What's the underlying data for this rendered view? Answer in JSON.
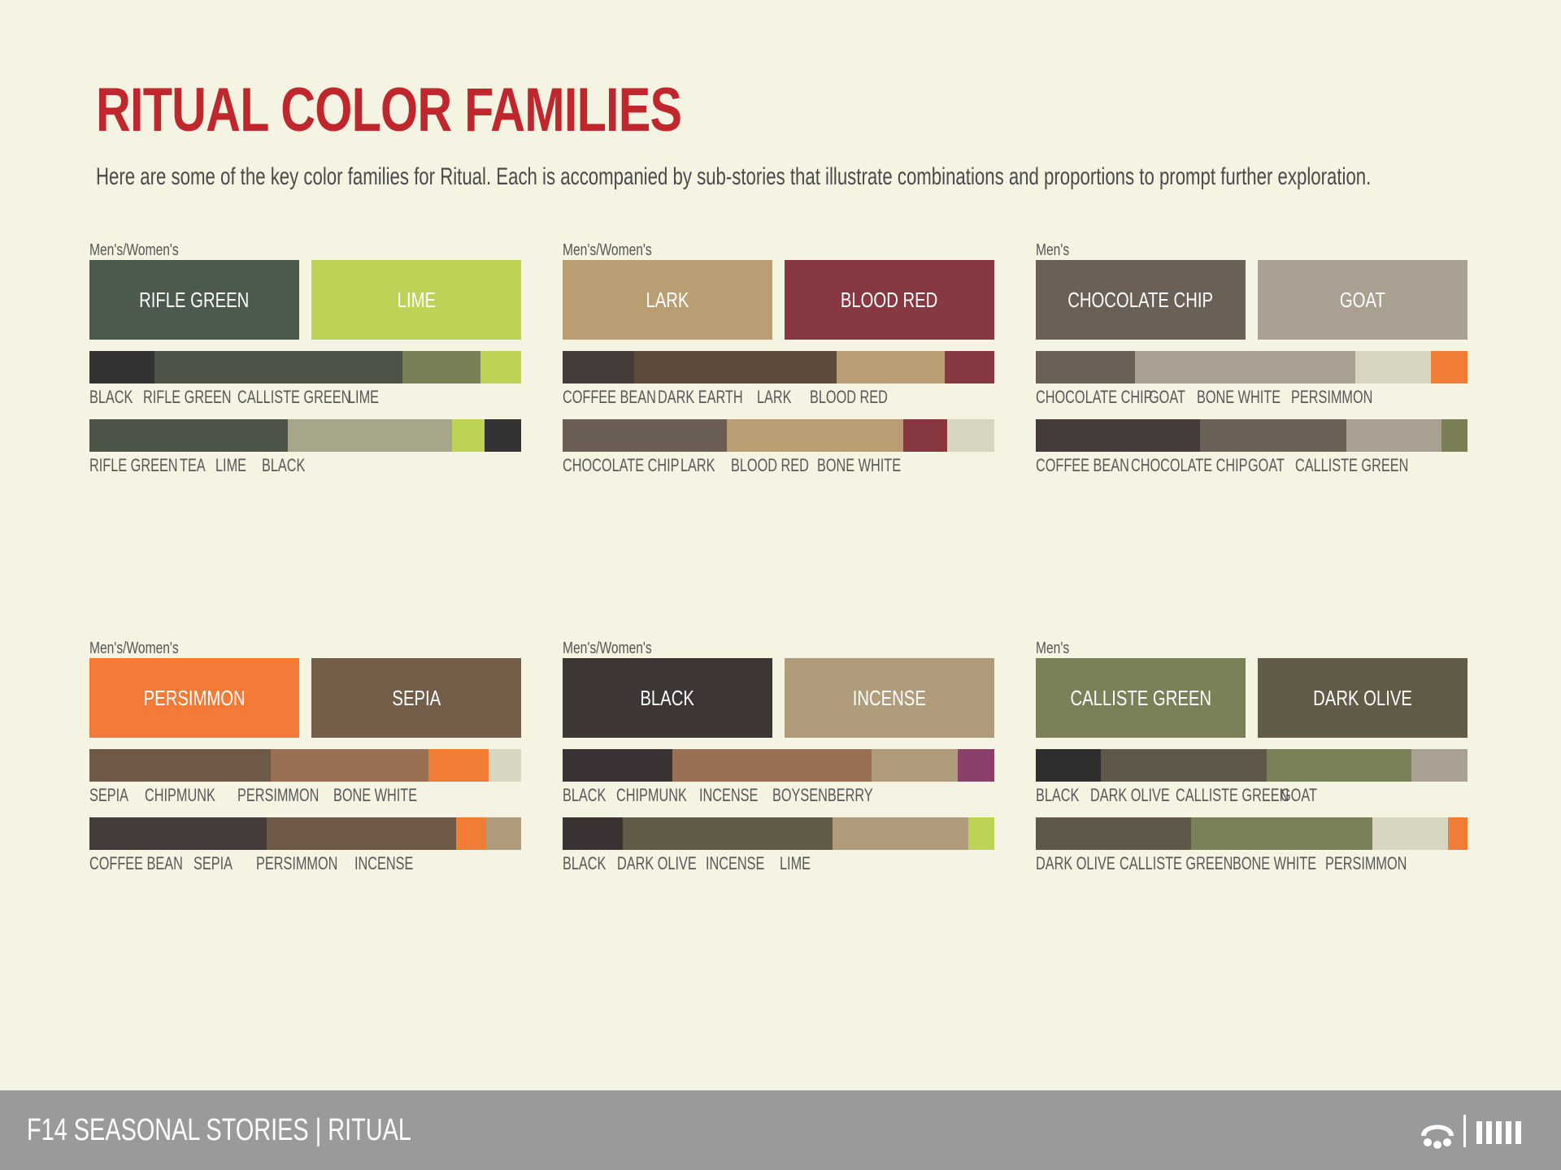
{
  "title": "RITUAL COLOR FAMILIES",
  "subtitle": "Here are some of the key color families for Ritual. Each is accompanied by sub-stories that illustrate combinations and proportions to prompt further exploration.",
  "footer": {
    "text": "F14 SEASONAL STORIES | RITUAL",
    "logo_icon": "paw-logo-icon",
    "bars_icon": "bars-icon"
  },
  "families": [
    {
      "segment": "Men's/Women's",
      "swatches": [
        {
          "name": "RIFLE GREEN",
          "color": "#4b5a4c"
        },
        {
          "name": "LIME",
          "color": "#bcd355"
        }
      ],
      "strips": [
        {
          "parts": [
            {
              "name": "BLACK",
              "color": "#353235",
              "fraction": 0.15
            },
            {
              "name": "RIFLE GREEN",
              "color": "#4b5446",
              "fraction": 0.575
            },
            {
              "name": "CALLISTE GREEN",
              "color": "#7a7f56",
              "fraction": 0.18
            },
            {
              "name": "LIME",
              "color": "#bcd355",
              "fraction": 0.095
            }
          ],
          "labels": [
            "BLACK",
            "RIFLE GREEN",
            "CALLISTE GREEN",
            "LIME"
          ]
        },
        {
          "parts": [
            {
              "name": "RIFLE GREEN",
              "color": "#4b5446",
              "fraction": 0.46
            },
            {
              "name": "TEA",
              "color": "#a7a68b",
              "fraction": 0.38
            },
            {
              "name": "LIME",
              "color": "#bcd355",
              "fraction": 0.075
            },
            {
              "name": "BLACK",
              "color": "#353235",
              "fraction": 0.085
            }
          ],
          "labels": [
            "RIFLE GREEN",
            "TEA",
            "LIME",
            "BLACK"
          ]
        }
      ]
    },
    {
      "segment": "Men's/Women's",
      "swatches": [
        {
          "name": "LARK",
          "color": "#b99e73"
        },
        {
          "name": "BLOOD RED",
          "color": "#873841"
        }
      ],
      "strips": [
        {
          "parts": [
            {
              "name": "COFFEE BEAN",
              "color": "#463b3b",
              "fraction": 0.165
            },
            {
              "name": "DARK EARTH",
              "color": "#5f4a3e",
              "fraction": 0.47
            },
            {
              "name": "LARK",
              "color": "#b99e73",
              "fraction": 0.25
            },
            {
              "name": "BLOOD RED",
              "color": "#873841",
              "fraction": 0.115
            }
          ],
          "labels": [
            "COFFEE BEAN",
            "DARK EARTH",
            "LARK",
            "BLOOD RED"
          ]
        },
        {
          "parts": [
            {
              "name": "CHOCOLATE CHIP",
              "color": "#6a5e55",
              "fraction": 0.38
            },
            {
              "name": "LARK",
              "color": "#b99e73",
              "fraction": 0.41
            },
            {
              "name": "BLOOD RED",
              "color": "#873841",
              "fraction": 0.1
            },
            {
              "name": "BONE WHITE",
              "color": "#d8d6c3",
              "fraction": 0.11
            }
          ],
          "labels": [
            "CHOCOLATE CHIP",
            "LARK",
            "BLOOD RED",
            "BONE WHITE"
          ]
        }
      ]
    },
    {
      "segment": "Men's",
      "swatches": [
        {
          "name": "CHOCOLATE CHIP",
          "color": "#6b6056"
        },
        {
          "name": "GOAT",
          "color": "#a9a091"
        }
      ],
      "strips": [
        {
          "parts": [
            {
              "name": "CHOCOLATE CHIP",
              "color": "#6b6056",
              "fraction": 0.23
            },
            {
              "name": "GOAT",
              "color": "#a9a091",
              "fraction": 0.51
            },
            {
              "name": "BONE WHITE",
              "color": "#d8d6c3",
              "fraction": 0.175
            },
            {
              "name": "PERSIMMON",
              "color": "#f07c35",
              "fraction": 0.085
            }
          ],
          "labels": [
            "CHOCOLATE CHIP",
            "GOAT",
            "BONE WHITE",
            "PERSIMMON"
          ]
        },
        {
          "parts": [
            {
              "name": "COFFEE BEAN",
              "color": "#463b3b",
              "fraction": 0.38
            },
            {
              "name": "CHOCOLATE CHIP",
              "color": "#6b6056",
              "fraction": 0.34
            },
            {
              "name": "GOAT",
              "color": "#a9a091",
              "fraction": 0.22
            },
            {
              "name": "CALLISTE GREEN",
              "color": "#7a7f56",
              "fraction": 0.06
            }
          ],
          "labels": [
            "COFFEE BEAN",
            "CHOCOLATE CHIP",
            "GOAT",
            "CALLISTE GREEN"
          ]
        }
      ]
    },
    {
      "segment": "Men's/Women's",
      "swatches": [
        {
          "name": "PERSIMMON",
          "color": "#f47b37"
        },
        {
          "name": "SEPIA",
          "color": "#735e49"
        }
      ],
      "strips": [
        {
          "parts": [
            {
              "name": "SEPIA",
              "color": "#6e5a46",
              "fraction": 0.42
            },
            {
              "name": "CHIPMUNK",
              "color": "#9a7052",
              "fraction": 0.365
            },
            {
              "name": "PERSIMMON",
              "color": "#f07c35",
              "fraction": 0.14
            },
            {
              "name": "BONE WHITE",
              "color": "#d8d6c3",
              "fraction": 0.075
            }
          ],
          "labels": [
            "SEPIA",
            "CHIPMUNK",
            "PERSIMMON",
            "BONE WHITE"
          ]
        },
        {
          "parts": [
            {
              "name": "COFFEE BEAN",
              "color": "#463b3b",
              "fraction": 0.41
            },
            {
              "name": "SEPIA",
              "color": "#6e5a46",
              "fraction": 0.44
            },
            {
              "name": "PERSIMMON",
              "color": "#f07c35",
              "fraction": 0.07
            },
            {
              "name": "INCENSE",
              "color": "#b09c7b",
              "fraction": 0.08
            }
          ],
          "labels": [
            "COFFEE BEAN",
            "SEPIA",
            "PERSIMMON",
            "INCENSE"
          ]
        }
      ]
    },
    {
      "segment": "Men's/Women's",
      "swatches": [
        {
          "name": "BLACK",
          "color": "#3e3535"
        },
        {
          "name": "INCENSE",
          "color": "#b09c7b"
        }
      ],
      "strips": [
        {
          "parts": [
            {
              "name": "BLACK",
              "color": "#3a3233",
              "fraction": 0.255
            },
            {
              "name": "CHIPMUNK",
              "color": "#9a7052",
              "fraction": 0.46
            },
            {
              "name": "INCENSE",
              "color": "#b09c7b",
              "fraction": 0.2
            },
            {
              "name": "BOYSENBERRY",
              "color": "#8c3f6a",
              "fraction": 0.085
            }
          ],
          "labels": [
            "BLACK",
            "CHIPMUNK",
            "INCENSE",
            "BOYSENBERRY"
          ]
        },
        {
          "parts": [
            {
              "name": "BLACK",
              "color": "#3a3233",
              "fraction": 0.14
            },
            {
              "name": "DARK OLIVE",
              "color": "#625b48",
              "fraction": 0.485
            },
            {
              "name": "INCENSE",
              "color": "#b09c7b",
              "fraction": 0.315
            },
            {
              "name": "LIME",
              "color": "#bcd355",
              "fraction": 0.06
            }
          ],
          "labels": [
            "BLACK",
            "DARK OLIVE",
            "INCENSE",
            "LIME"
          ]
        }
      ]
    },
    {
      "segment": "Men's",
      "swatches": [
        {
          "name": "CALLISTE GREEN",
          "color": "#7a8058"
        },
        {
          "name": "DARK OLIVE",
          "color": "#625b48"
        }
      ],
      "strips": [
        {
          "parts": [
            {
              "name": "BLACK",
              "color": "#2f2d2e",
              "fraction": 0.15
            },
            {
              "name": "DARK OLIVE",
              "color": "#5d5847",
              "fraction": 0.385
            },
            {
              "name": "CALLISTE GREEN",
              "color": "#7a8058",
              "fraction": 0.335
            },
            {
              "name": "GOAT",
              "color": "#a9a091",
              "fraction": 0.13
            }
          ],
          "labels": [
            "BLACK",
            "DARK OLIVE",
            "CALLISTE GREEN",
            "GOAT"
          ]
        },
        {
          "parts": [
            {
              "name": "DARK OLIVE",
              "color": "#5d5847",
              "fraction": 0.36
            },
            {
              "name": "CALLISTE GREEN",
              "color": "#7a8058",
              "fraction": 0.42
            },
            {
              "name": "BONE WHITE",
              "color": "#d8d6c3",
              "fraction": 0.175
            },
            {
              "name": "PERSIMMON",
              "color": "#f07c35",
              "fraction": 0.045
            }
          ],
          "labels": [
            "DARK OLIVE",
            "CALLISTE GREEN",
            "BONE WHITE",
            "PERSIMMON"
          ]
        }
      ]
    }
  ]
}
